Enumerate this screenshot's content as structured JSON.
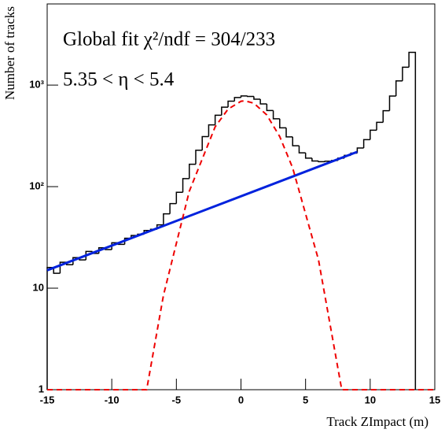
{
  "chart_data": {
    "type": "histogram",
    "annotations": [
      "Global fit χ²/ndf = 304/233",
      "5.35 < η < 5.4"
    ],
    "xlabel": "Track ZImpact (m)",
    "ylabel": "Number of tracks",
    "bins": [
      -15,
      -14.5,
      -14,
      -13.5,
      -13,
      -12.5,
      -12,
      -11.5,
      -11,
      -10.5,
      -10,
      -9.5,
      -9,
      -8.5,
      -8,
      -7.5,
      -7,
      -6.5,
      -6,
      -5.5,
      -5,
      -4.5,
      -4,
      -3.5,
      -3,
      -2.5,
      -2,
      -1.5,
      -1,
      -0.5,
      0,
      0.5,
      1,
      1.5,
      2,
      2.5,
      3,
      3.5,
      4,
      4.5,
      5,
      5.5,
      6,
      6.5,
      7,
      7.5,
      8,
      8.5,
      9,
      9.5,
      10,
      10.5,
      11,
      11.5,
      12,
      12.5,
      13,
      13.5
    ],
    "values": [
      16,
      14,
      18,
      17,
      20,
      19,
      23,
      22,
      25,
      24,
      28,
      27,
      31,
      33,
      34,
      37,
      38,
      42,
      54,
      68,
      88,
      120,
      166,
      228,
      311,
      406,
      505,
      606,
      694,
      755,
      782,
      773,
      726,
      652,
      562,
      466,
      379,
      309,
      253,
      215,
      191,
      179,
      176,
      178,
      181,
      191,
      203,
      214,
      240,
      290,
      360,
      430,
      560,
      780,
      1100,
      1500,
      2100
    ],
    "color": "#000000",
    "lines": [
      {
        "x": [
          -15,
          9
        ],
        "values": [
          15,
          220
        ],
        "color": "#0022dd",
        "style": "solid"
      },
      {
        "x": [
          -15,
          -7.3,
          -6,
          -4,
          -2,
          -1,
          0,
          0.3,
          1,
          2,
          3,
          4,
          6,
          7.8,
          15
        ],
        "values": [
          1,
          1,
          8.5,
          90,
          388,
          580,
          693,
          700,
          663,
          508,
          311,
          153,
          19,
          1,
          1
        ],
        "color": "#ee0000",
        "style": "dashed"
      }
    ],
    "log_y": true,
    "xlim": [
      -15,
      15
    ],
    "ylim": [
      1,
      6300
    ],
    "xticks": [
      -15,
      -10,
      -5,
      0,
      5,
      10,
      15
    ],
    "yticks": [
      1,
      10,
      {
        "value": 100,
        "label": "10²"
      },
      {
        "value": 1000,
        "label": "10³"
      }
    ]
  }
}
